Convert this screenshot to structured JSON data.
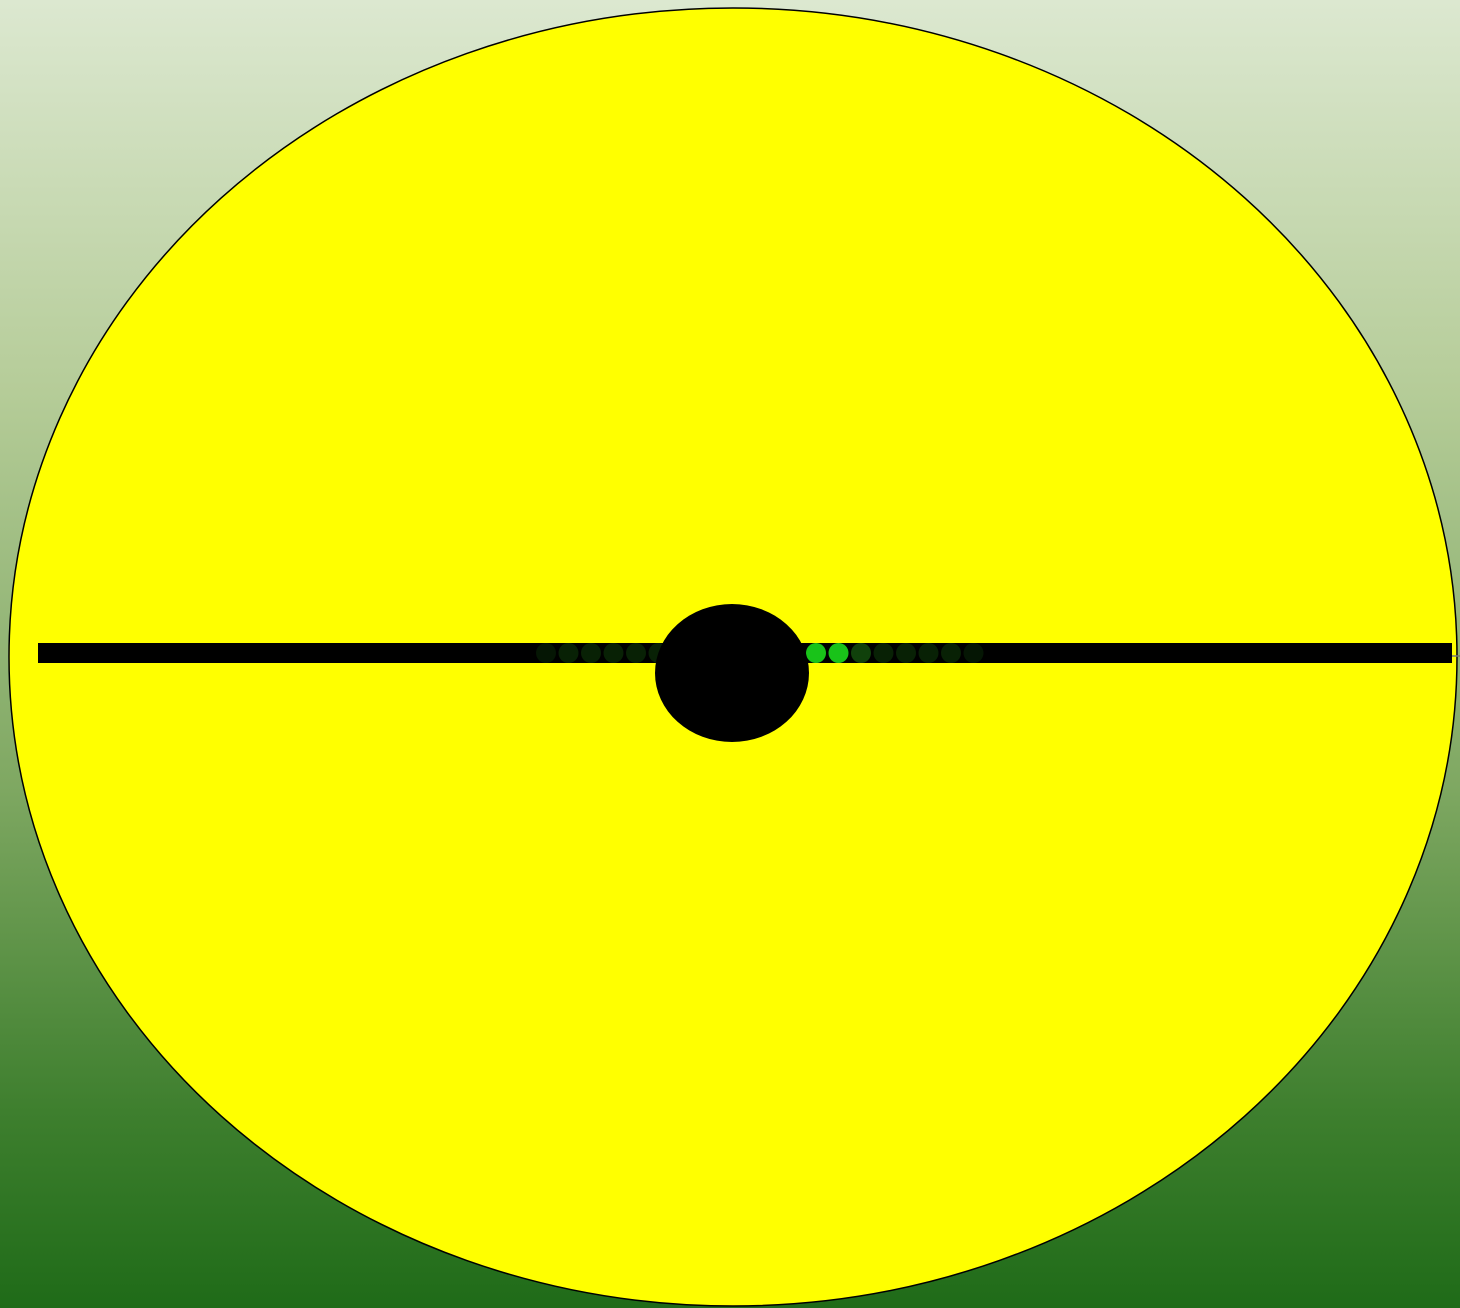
{
  "game": {
    "board": {
      "fill_color": "#ffff00",
      "outline_color": "#000000"
    },
    "track": {
      "color": "#000000"
    },
    "hub": {
      "color": "#000000"
    },
    "indicator_lights": {
      "lit_color": "#19c319",
      "dim_color": "#1a6d12",
      "left_levels": [
        0.15,
        0.3,
        0.3,
        0.3,
        0.3,
        0.3,
        1,
        1,
        1,
        1
      ],
      "right_levels": [
        1,
        1,
        1,
        1,
        0.6,
        0.3,
        0.3,
        0.3,
        0.3,
        0.15
      ]
    },
    "background": {
      "top_color": "#dce8d0",
      "bottom_color": "#1f6b18"
    }
  }
}
